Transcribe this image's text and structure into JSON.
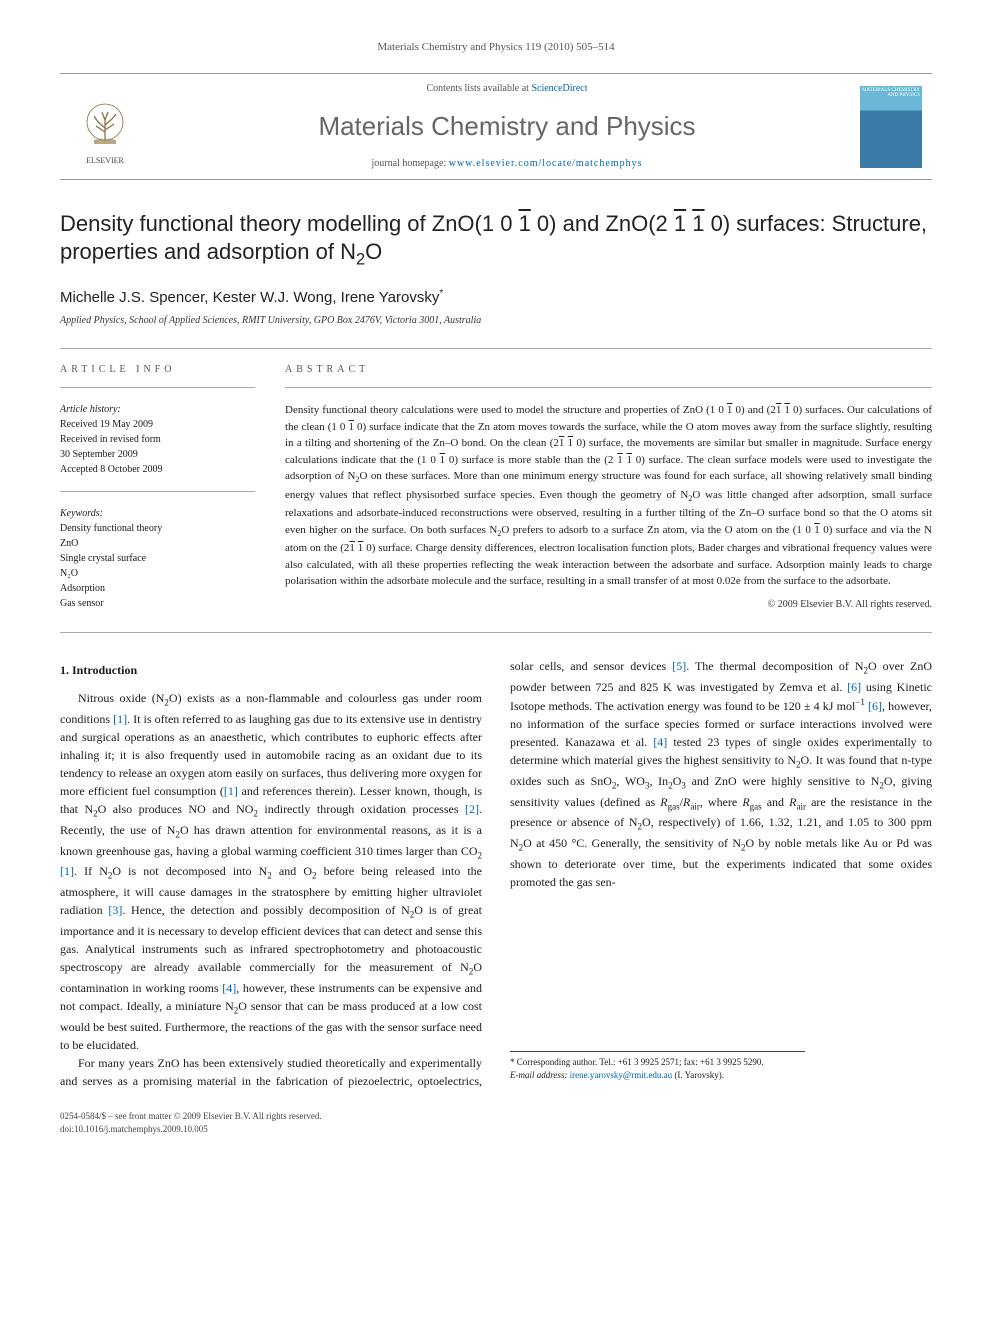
{
  "journal": {
    "running_head": "Materials Chemistry and Physics 119 (2010) 505–514",
    "contents_text": "Contents lists available at ",
    "contents_link": "ScienceDirect",
    "name": "Materials Chemistry and Physics",
    "homepage_label": "journal homepage: ",
    "homepage_url": "www.elsevier.com/locate/matchemphys",
    "publisher": "ELSEVIER",
    "cover_title": "MATERIALS CHEMISTRY AND PHYSICS"
  },
  "article": {
    "title_html": "Density functional theory modelling of ZnO(1 0 <span class=\"overbar\">1</span> 0) and ZnO(2 <span class=\"overbar\">1</span> <span class=\"overbar\">1</span> 0) surfaces: Structure, properties and adsorption of N<sub>2</sub>O",
    "authors_html": "Michelle J.S. Spencer, Kester W.J. Wong, Irene Yarovsky<sup>*</sup>",
    "affiliation": "Applied Physics, School of Applied Sciences, RMIT University, GPO Box 2476V, Victoria 3001, Australia"
  },
  "meta": {
    "info_head": "ARTICLE INFO",
    "abstract_head": "ABSTRACT",
    "history_label": "Article history:",
    "received": "Received 19 May 2009",
    "revised1": "Received in revised form",
    "revised2": "30 September 2009",
    "accepted": "Accepted 8 October 2009",
    "keywords_label": "Keywords:",
    "keywords": [
      "Density functional theory",
      "ZnO",
      "Single crystal surface",
      "N₂O",
      "Adsorption",
      "Gas sensor"
    ]
  },
  "abstract": {
    "text_html": "Density functional theory calculations were used to model the structure and properties of ZnO (1 0 <span class=\"overbar\">1</span> 0) and (2<span class=\"overbar\">1</span> <span class=\"overbar\">1</span> 0) surfaces. Our calculations of the clean (1 0 <span class=\"overbar\">1</span> 0) surface indicate that the Zn atom moves towards the surface, while the O atom moves away from the surface slightly, resulting in a tilting and shortening of the Zn–O bond. On the clean (2<span class=\"overbar\">1</span> <span class=\"overbar\">1</span> 0) surface, the movements are similar but smaller in magnitude. Surface energy calculations indicate that the (1 0 <span class=\"overbar\">1</span> 0) surface is more stable than the (2 <span class=\"overbar\">1</span> <span class=\"overbar\">1</span> 0) surface. The clean surface models were used to investigate the adsorption of N<sub>2</sub>O on these surfaces. More than one minimum energy structure was found for each surface, all showing relatively small binding energy values that reflect physisorbed surface species. Even though the geometry of N<sub>2</sub>O was little changed after adsorption, small surface relaxations and adsorbate-induced reconstructions were observed, resulting in a further tilting of the Zn–O surface bond so that the O atoms sit even higher on the surface. On both surfaces N<sub>2</sub>O prefers to adsorb to a surface Zn atom, via the O atom on the (1 0 <span class=\"overbar\">1</span> 0) surface and via the N atom on the (2<span class=\"overbar\">1</span> <span class=\"overbar\">1</span> 0) surface. Charge density differences, electron localisation function plots, Bader charges and vibrational frequency values were also calculated, with all these properties reflecting the weak interaction between the adsorbate and surface. Adsorption mainly leads to charge polarisation within the adsorbate molecule and the surface, resulting in a small transfer of at most 0.02e from the surface to the adsorbate.",
    "copyright": "© 2009 Elsevier B.V. All rights reserved."
  },
  "section1": {
    "heading": "1. Introduction",
    "p1_html": "Nitrous oxide (N<sub>2</sub>O) exists as a non-flammable and colourless gas under room conditions <a class=\"ref-link\" href=\"#\">[1]</a>. It is often referred to as laughing gas due to its extensive use in dentistry and surgical operations as an anaesthetic, which contributes to euphoric effects after inhaling it; it is also frequently used in automobile racing as an oxidant due to its tendency to release an oxygen atom easily on surfaces, thus delivering more oxygen for more efficient fuel consumption (<a class=\"ref-link\" href=\"#\">[1]</a> and references therein). Lesser known, though, is that N<sub>2</sub>O also produces NO and NO<sub>2</sub> indirectly through oxidation processes <a class=\"ref-link\" href=\"#\">[2]</a>. Recently, the use of N<sub>2</sub>O has drawn attention for environmental reasons, as it is a known greenhouse gas, having a global warming coefficient 310 times larger than CO<sub>2</sub> <a class=\"ref-link\" href=\"#\">[1]</a>. If N<sub>2</sub>O is not decomposed into N<sub>2</sub> and O<sub>2</sub> before being released into the atmosphere, it will cause damages in the stratosphere by emitting higher ultraviolet radiation <a class=\"ref-link\" href=\"#\">[3]</a>. Hence, the detection and possibly decomposition of N<sub>2</sub>O is of great importance and it is necessary to develop efficient devices that can detect and sense this gas. Analytical instruments such as infrared spectrophotometry and photoacoustic spectroscopy are already available commercially for the measurement of N<sub>2</sub>O contamination in working rooms <a class=\"ref-link\" href=\"#\">[4]</a>, however, these instruments can be expensive and not compact. Ideally, a miniature N<sub>2</sub>O sensor that can be mass produced at a low cost would be best suited. Furthermore, the reactions of the gas with the sensor surface need to be elucidated.",
    "p2_html": "For many years ZnO has been extensively studied theoretically and experimentally and serves as a promising material in the fabrication of piezoelectric, optoelectrics, solar cells, and sensor devices <a class=\"ref-link\" href=\"#\">[5]</a>. The thermal decomposition of N<sub>2</sub>O over ZnO powder between 725 and 825 K was investigated by Zemva et al. <a class=\"ref-link\" href=\"#\">[6]</a> using Kinetic Isotope methods. The activation energy was found to be 120 ± 4 kJ mol<sup>−1</sup> <a class=\"ref-link\" href=\"#\">[6]</a>, however, no information of the surface species formed or surface interactions involved were presented. Kanazawa et al. <a class=\"ref-link\" href=\"#\">[4]</a> tested 23 types of single oxides experimentally to determine which material gives the highest sensitivity to N<sub>2</sub>O. It was found that n-type oxides such as SnO<sub>2</sub>, WO<sub>3</sub>, In<sub>2</sub>O<sub>3</sub> and ZnO were highly sensitive to N<sub>2</sub>O, giving sensitivity values (defined as <i>R</i><sub>gas</sub>/<i>R</i><sub>air</sub>, where <i>R</i><sub>gas</sub> and <i>R</i><sub>air</sub> are the resistance in the presence or absence of N<sub>2</sub>O, respectively) of 1.66, 1.32, 1.21, and 1.05 to 300 ppm N<sub>2</sub>O at 450 °C. Generally, the sensitivity of N<sub>2</sub>O by noble metals like Au or Pd was shown to deteriorate over time, but the experiments indicated that some oxides promoted the gas sen-"
  },
  "footnote": {
    "corr_html": "* Corresponding author. Tel.: +61 3 9925 2571; fax: +61 3 9925 5290.",
    "email_label": "E-mail address: ",
    "email": "irene.yarovsky@rmit.edu.au",
    "email_suffix": " (I. Yarovsky)."
  },
  "footer": {
    "line1": "0254-0584/$ – see front matter © 2009 Elsevier B.V. All rights reserved.",
    "line2": "doi:10.1016/j.matchemphys.2009.10.005"
  },
  "colors": {
    "text": "#1a1a1a",
    "link": "#0066aa",
    "muted": "#666666",
    "rule": "#999999"
  }
}
